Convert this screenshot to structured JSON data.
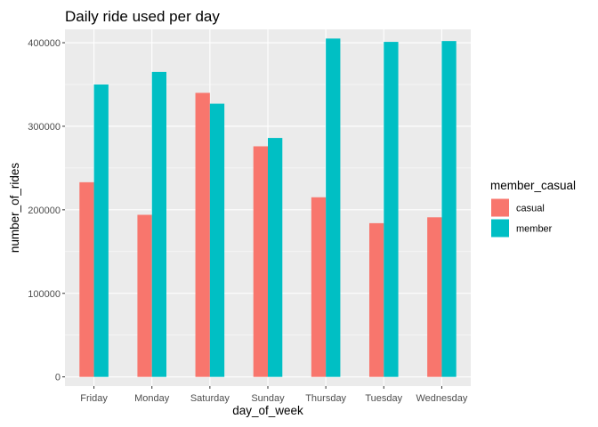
{
  "chart_data": {
    "type": "bar",
    "title": "Daily ride used per day",
    "xlabel": "day_of_week",
    "ylabel": "number_of_rides",
    "categories": [
      "Friday",
      "Monday",
      "Saturday",
      "Sunday",
      "Thursday",
      "Tuesday",
      "Wednesday"
    ],
    "series": [
      {
        "name": "casual",
        "color": "#F8766D",
        "values": [
          233000,
          194000,
          340000,
          276000,
          215000,
          184000,
          191000
        ]
      },
      {
        "name": "member",
        "color": "#00BFC4",
        "values": [
          350000,
          365000,
          327000,
          286000,
          405000,
          401000,
          402000
        ]
      }
    ],
    "ylim": [
      -11000,
      416000
    ],
    "yticks": [
      0,
      100000,
      200000,
      300000,
      400000
    ],
    "ytick_labels": [
      "0",
      "100000",
      "200000",
      "300000",
      "400000"
    ],
    "grid": true,
    "legend": {
      "title": "member_casual",
      "position": "right"
    },
    "colors": {
      "panel": "#EBEBEB",
      "grid": "#FFFFFF"
    }
  }
}
